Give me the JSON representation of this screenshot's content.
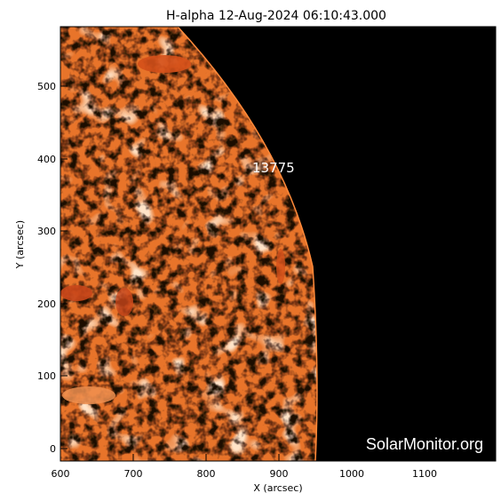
{
  "title": "H-alpha 12-Aug-2024 06:10:43.000",
  "xlabel": "X (arcsec)",
  "ylabel": "Y (arcsec)",
  "x_ticks": [
    "600",
    "700",
    "800",
    "900",
    "1000",
    "1100"
  ],
  "y_ticks": [
    "0",
    "100",
    "200",
    "300",
    "400",
    "500"
  ],
  "active_region": "13775",
  "credit": "SolarMonitor.org",
  "colors": {
    "disk_base": "#e8742a",
    "disk_light": "#ffd8b0",
    "disk_dark": "#1a0a05",
    "space": "#000000"
  }
}
